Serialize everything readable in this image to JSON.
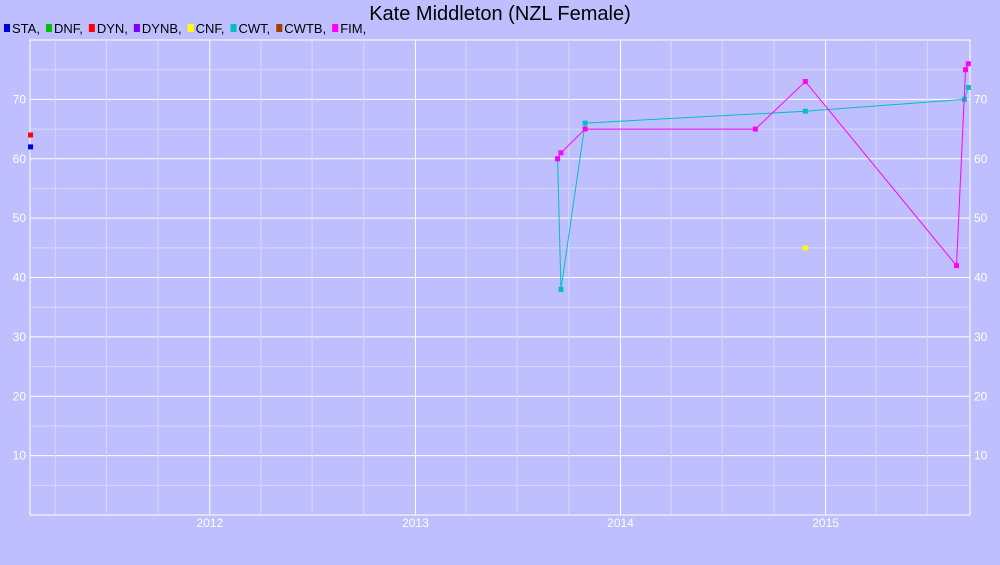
{
  "chart_data": {
    "type": "line",
    "title": "Kate Middleton (NZL Female)",
    "background_color": "#bfbfff",
    "grid": true,
    "legend_position": "top-left",
    "xlim": [
      "2011-02-15",
      "2015-09-15"
    ],
    "ylim": [
      0,
      80
    ],
    "x_ticks": [
      {
        "date": "2012-01-01",
        "label": "2012"
      },
      {
        "date": "2013-01-01",
        "label": "2013"
      },
      {
        "date": "2014-01-01",
        "label": "2014"
      },
      {
        "date": "2015-01-01",
        "label": "2015"
      }
    ],
    "y_ticks": [
      10,
      20,
      30,
      40,
      50,
      60,
      70
    ],
    "series": [
      {
        "name": "STA",
        "color": "#0000dd",
        "connect": false,
        "points": [
          [
            "2011-02-16",
            62
          ]
        ]
      },
      {
        "name": "DNF",
        "color": "#00c000",
        "connect": false,
        "points": []
      },
      {
        "name": "DYN",
        "color": "#ff0000",
        "connect": false,
        "points": [
          [
            "2011-02-16",
            64
          ]
        ]
      },
      {
        "name": "DYNB",
        "color": "#7a00ff",
        "connect": false,
        "points": []
      },
      {
        "name": "CNF",
        "color": "#ffff00",
        "connect": false,
        "points": [
          [
            "2014-11-26",
            45
          ]
        ]
      },
      {
        "name": "CWT",
        "color": "#00c0c0",
        "connect": true,
        "points": [
          [
            "2013-09-11",
            60
          ],
          [
            "2013-09-17",
            38
          ],
          [
            "2013-10-30",
            66
          ],
          [
            "2014-11-26",
            68
          ],
          [
            "2015-09-05",
            70
          ],
          [
            "2015-09-12",
            72
          ]
        ]
      },
      {
        "name": "CWTB",
        "color": "#a04000",
        "connect": false,
        "points": []
      },
      {
        "name": "FIM",
        "color": "#ff00ff",
        "connect": true,
        "points": [
          [
            "2013-09-11",
            60
          ],
          [
            "2013-09-17",
            61
          ],
          [
            "2013-10-30",
            65
          ],
          [
            "2014-08-29",
            65
          ],
          [
            "2014-11-26",
            73
          ],
          [
            "2015-08-22",
            42
          ],
          [
            "2015-09-07",
            75
          ],
          [
            "2015-09-12",
            76
          ]
        ]
      }
    ]
  }
}
